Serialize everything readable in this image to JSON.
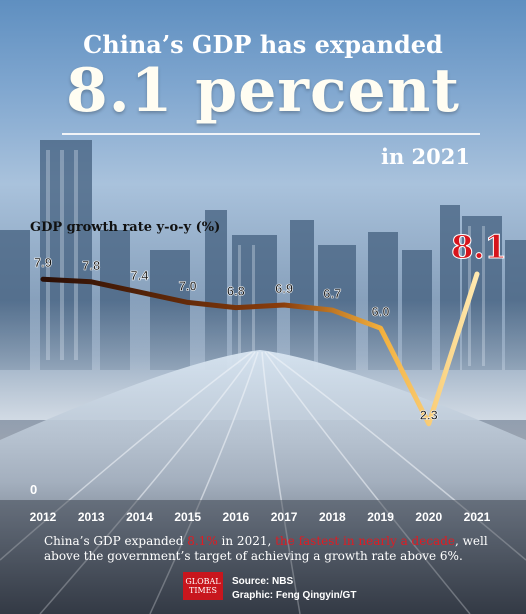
{
  "header": {
    "title_line1": "China’s GDP has expanded",
    "title_big": "8.1 percent",
    "title_year": "in 2021"
  },
  "chart_data": {
    "type": "line",
    "title": "China’s GDP has expanded 8.1 percent in 2021",
    "ylabel": "GDP growth rate y-o-y (%)",
    "xlabel": "",
    "x": [
      "2012",
      "2013",
      "2014",
      "2015",
      "2016",
      "2017",
      "2018",
      "2019",
      "2020",
      "2021"
    ],
    "series": [
      {
        "values": [
          7.9,
          7.8,
          7.4,
          7.0,
          6.8,
          6.9,
          6.7,
          6.0,
          2.3,
          8.1
        ],
        "labels": [
          "7.9",
          "7.8",
          "7.4",
          "7.0",
          "6.8",
          "6.9",
          "6.7",
          "6.0",
          "2.3",
          "8.1"
        ]
      }
    ],
    "y_zero_label": "0",
    "highlight": {
      "category": "2021",
      "color": "#d7141c"
    },
    "line_gradient": [
      "#2a0e05",
      "#8a3d0c",
      "#f3b03c",
      "#ffe9b0"
    ],
    "grid": false
  },
  "caption": {
    "part1": "China’s GDP expanded ",
    "highlight1": "8.1%",
    "part2": " in 2021, ",
    "highlight2": "the fastest in nearly a decade",
    "part3": ", well above the government’s target of achieving a growth rate above 6%."
  },
  "footer": {
    "logo_text": "GLOBAL TIMES",
    "source": "Source: NBS",
    "graphic": "Graphic: Feng Qingyin/GT"
  }
}
